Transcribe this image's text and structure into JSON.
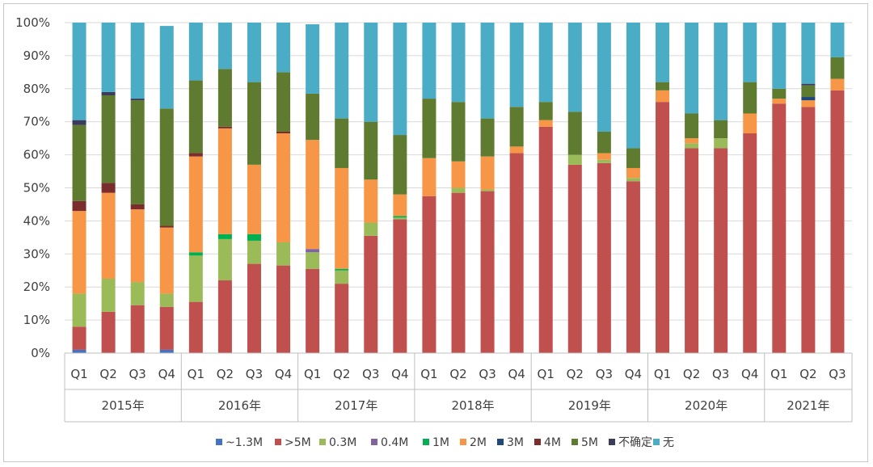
{
  "chart_data": {
    "type": "bar",
    "stacked": true,
    "normalized": true,
    "ylim": [
      0,
      100
    ],
    "yticks": [
      "0%",
      "10%",
      "20%",
      "30%",
      "40%",
      "50%",
      "60%",
      "70%",
      "80%",
      "90%",
      "100%"
    ],
    "grid": true,
    "legend_position": "bottom",
    "categories": [
      "Q1",
      "Q2",
      "Q3",
      "Q4",
      "Q1",
      "Q2",
      "Q3",
      "Q4",
      "Q1",
      "Q2",
      "Q3",
      "Q4",
      "Q1",
      "Q2",
      "Q3",
      "Q4",
      "Q1",
      "Q2",
      "Q3",
      "Q4",
      "Q1",
      "Q2",
      "Q3",
      "Q4",
      "Q1",
      "Q2",
      "Q3"
    ],
    "groups": [
      {
        "label": "2015年",
        "count": 4
      },
      {
        "label": "2016年",
        "count": 4
      },
      {
        "label": "2017年",
        "count": 4
      },
      {
        "label": "2018年",
        "count": 4
      },
      {
        "label": "2019年",
        "count": 4
      },
      {
        "label": "2020年",
        "count": 4
      },
      {
        "label": "2021年",
        "count": 3
      }
    ],
    "series": [
      {
        "name": "~1.3M",
        "color": "#4472c4",
        "values": [
          1,
          0,
          0,
          1,
          0,
          0,
          0,
          0,
          0,
          0,
          0,
          0,
          0,
          0,
          0,
          0,
          0,
          0,
          0,
          0,
          0,
          0,
          0,
          0,
          0,
          0,
          0
        ]
      },
      {
        "name": ">5M",
        "color": "#c0504d",
        "values": [
          7,
          12.5,
          14.5,
          13,
          15.5,
          22,
          27,
          26.5,
          25.5,
          21,
          35.5,
          40.5,
          47.5,
          48.5,
          49,
          60.5,
          68.5,
          57,
          57.5,
          52,
          76,
          62,
          62,
          66.5,
          75.5,
          74.5,
          79.5
        ]
      },
      {
        "name": "0.3M",
        "color": "#9bbb59",
        "values": [
          10,
          10,
          7,
          4,
          14,
          12.5,
          7,
          7,
          5,
          4,
          4,
          0.5,
          0,
          1.5,
          0.5,
          0,
          0,
          3,
          1,
          1,
          0,
          1.5,
          3,
          0,
          0,
          0,
          0
        ]
      },
      {
        "name": "0.4M",
        "color": "#8064a2",
        "values": [
          0,
          0,
          0,
          0,
          0,
          0,
          0,
          0,
          1,
          0,
          0,
          0,
          0,
          0,
          0,
          0,
          0,
          0,
          0,
          0,
          0,
          0,
          0,
          0,
          0,
          0,
          0
        ]
      },
      {
        "name": "1M",
        "color": "#00b050",
        "values": [
          0,
          0,
          0,
          0,
          1,
          1.5,
          2,
          0,
          0,
          0.5,
          0,
          0.5,
          0,
          0,
          0,
          0,
          0,
          0,
          0,
          0,
          0,
          0,
          0,
          0,
          0,
          0,
          0
        ]
      },
      {
        "name": "2M",
        "color": "#f79646",
        "values": [
          25,
          26,
          22,
          20,
          29,
          32,
          21,
          33,
          33,
          30.5,
          13,
          6.5,
          11.5,
          8,
          10,
          2,
          2,
          0,
          2,
          3,
          3.5,
          1.5,
          0,
          6,
          1.5,
          2,
          3.5
        ]
      },
      {
        "name": "3M",
        "color": "#1f497d",
        "values": [
          0,
          0,
          0,
          0,
          0,
          0,
          0,
          0,
          0,
          0,
          0,
          0,
          0,
          0,
          0,
          0,
          0,
          0,
          0,
          0,
          0,
          0,
          0,
          0,
          0,
          1,
          0
        ]
      },
      {
        "name": "4M",
        "color": "#7b2c2c",
        "values": [
          3,
          3,
          1.5,
          0.5,
          1,
          0.5,
          0,
          0.5,
          0,
          0,
          0,
          0,
          0,
          0,
          0,
          0,
          0,
          0,
          0,
          0,
          0,
          0,
          0,
          0,
          0,
          0,
          0
        ]
      },
      {
        "name": "5M",
        "color": "#5e7b2f",
        "values": [
          23,
          26.5,
          31.5,
          35.5,
          22,
          17.5,
          25,
          18,
          14,
          15,
          17.5,
          18,
          18,
          18,
          11.5,
          12,
          5.5,
          13,
          6.5,
          6,
          2.5,
          7.5,
          5.5,
          9.5,
          3,
          3.5,
          6.5
        ]
      },
      {
        "name": "不确定",
        "color": "#3b3b5c",
        "values": [
          1.5,
          1,
          0.5,
          0,
          0,
          0,
          0,
          0,
          0,
          0,
          0,
          0,
          0,
          0,
          0,
          0,
          0,
          0,
          0,
          0,
          0,
          0,
          0,
          0,
          0,
          0.5,
          0
        ]
      },
      {
        "name": "无",
        "color": "#4bacc6",
        "values": [
          29.5,
          21,
          23,
          25,
          17.5,
          14,
          18,
          15,
          21,
          29,
          30,
          34,
          23,
          24,
          29,
          25.5,
          24,
          27,
          33,
          38,
          18,
          27.5,
          29.5,
          18,
          20,
          18.5,
          10.5
        ]
      }
    ]
  }
}
